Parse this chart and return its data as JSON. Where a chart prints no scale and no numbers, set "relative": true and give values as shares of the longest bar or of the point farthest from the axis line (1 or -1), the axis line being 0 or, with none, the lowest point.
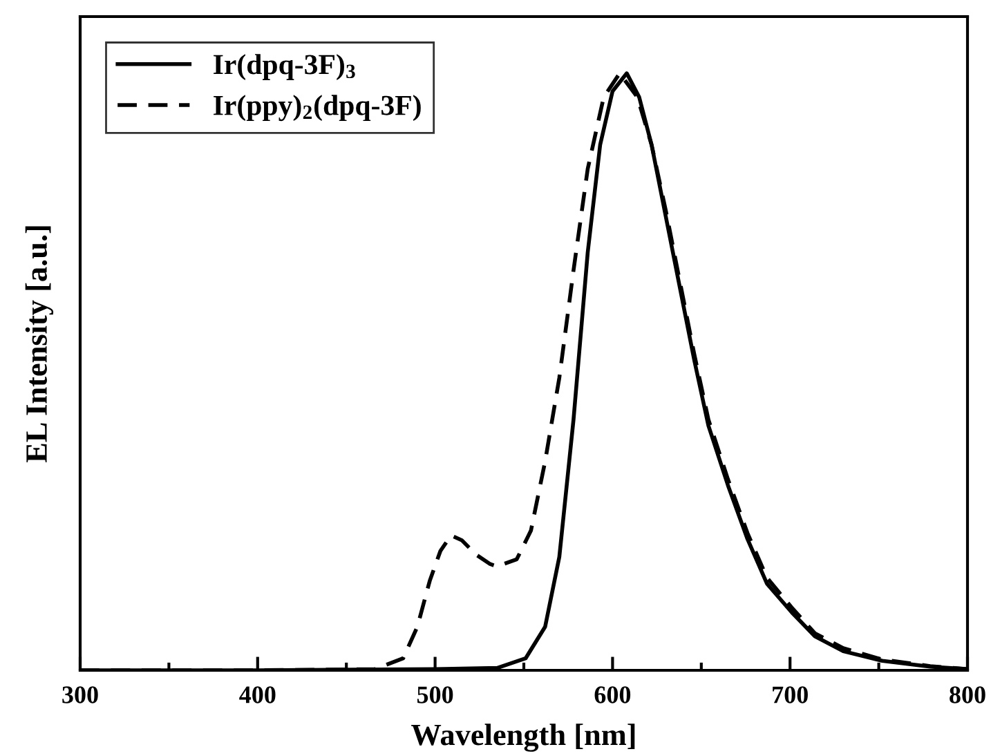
{
  "chart_data": {
    "type": "line",
    "relative": true,
    "xlabel": "Wavelength [nm]",
    "ylabel": "EL Intensity [a.u.]",
    "xlim": [
      300,
      800
    ],
    "xticks": [
      300,
      400,
      500,
      600,
      700,
      800
    ],
    "legend": "top left",
    "grid": false,
    "series": [
      {
        "name": "Ir(dpq-3F)$_{3}$",
        "color": "#000000",
        "line_style": "solid",
        "x": [
          300,
          400,
          500,
          535,
          551,
          562,
          570,
          578,
          586,
          593,
          600,
          608,
          615,
          622,
          630,
          638,
          646,
          654,
          665,
          676,
          687,
          701,
          714,
          730,
          752,
          779,
          800
        ],
        "values": [
          0,
          0,
          0.002,
          0.004,
          0.02,
          0.073,
          0.19,
          0.42,
          0.7,
          0.88,
          0.97,
          1.0,
          0.96,
          0.88,
          0.76,
          0.64,
          0.52,
          0.41,
          0.31,
          0.22,
          0.145,
          0.097,
          0.057,
          0.032,
          0.016,
          0.006,
          0.002
        ]
      },
      {
        "name": "Ir(ppy)$_{2}$(dpq-3F)",
        "color": "#000000",
        "line_style": "dashed",
        "x": [
          300,
          400,
          466,
          482,
          490,
          497,
          503,
          509,
          515,
          523,
          531,
          535,
          546,
          554,
          562,
          570,
          578,
          586,
          595,
          604,
          614,
          622,
          630,
          638,
          646,
          654,
          665,
          676,
          687,
          701,
          714,
          730,
          752,
          779,
          800
        ],
        "values": [
          0,
          0,
          0.002,
          0.02,
          0.073,
          0.15,
          0.2,
          0.226,
          0.218,
          0.194,
          0.178,
          0.174,
          0.186,
          0.234,
          0.35,
          0.49,
          0.67,
          0.84,
          0.96,
          1.0,
          0.96,
          0.88,
          0.77,
          0.65,
          0.53,
          0.42,
          0.32,
          0.23,
          0.155,
          0.105,
          0.062,
          0.037,
          0.018,
          0.007,
          0.002
        ]
      }
    ]
  }
}
